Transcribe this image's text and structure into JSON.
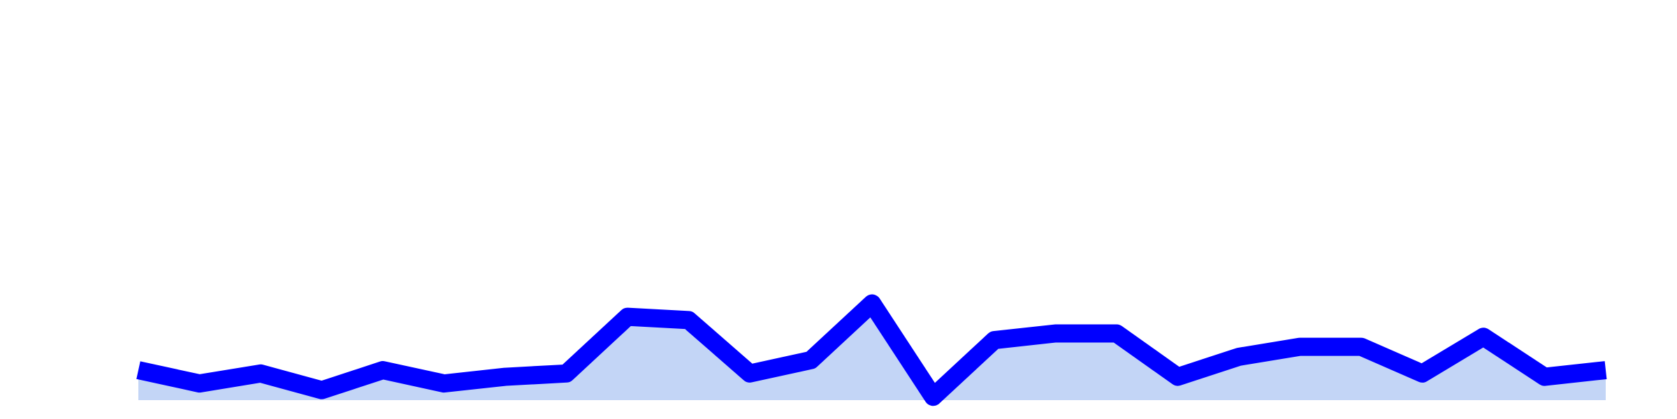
{
  "chart_data": {
    "type": "area",
    "x": [
      1,
      2,
      3,
      4,
      5,
      6,
      7,
      8,
      9,
      10,
      11,
      12,
      13,
      14,
      15,
      16,
      17,
      18,
      19,
      20,
      21,
      22,
      23,
      24,
      25
    ],
    "series": [
      {
        "values": [
          4.5,
          2.5,
          4.0,
          1.5,
          4.5,
          2.5,
          3.5,
          4.0,
          12.5,
          12.0,
          4.0,
          6.0,
          14.5,
          0.5,
          9.0,
          10.0,
          10.0,
          3.5,
          6.5,
          8.0,
          8.0,
          4.0,
          9.5,
          3.5,
          4.5
        ],
        "line_color": "#0000ff",
        "fill_color": "#c3d5f6"
      }
    ],
    "ylim": [
      0,
      60
    ],
    "grid": false,
    "title": "",
    "xlabel": "",
    "ylabel": ""
  }
}
